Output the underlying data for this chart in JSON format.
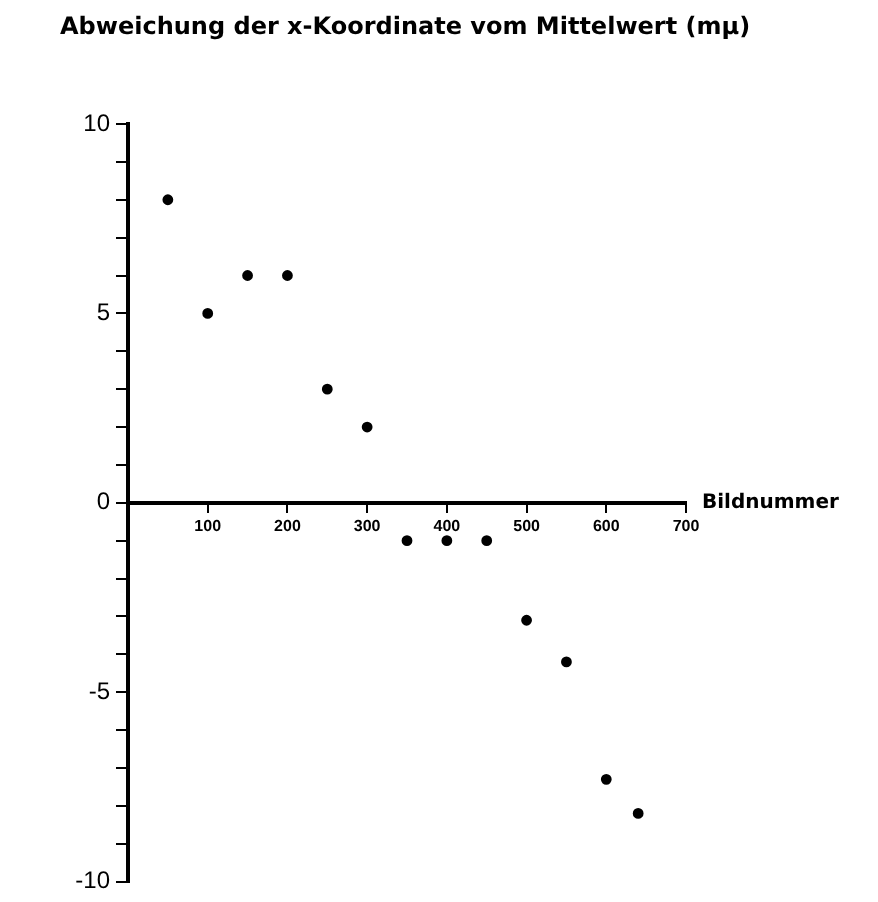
{
  "chart_data": {
    "type": "scatter",
    "title": "Abweichung der x-Koordinate vom Mittelwert (mμ)",
    "xlabel": "Bildnummer",
    "x": [
      50,
      100,
      150,
      200,
      250,
      300,
      350,
      400,
      450,
      500,
      550,
      600,
      640
    ],
    "values": [
      8,
      5,
      6,
      6,
      3,
      2,
      -1,
      -1,
      -1,
      -3.1,
      -4.2,
      -7.3,
      -8.2
    ],
    "color": "#000000",
    "marker": "circle",
    "grid": false,
    "xlim": [
      0,
      700
    ],
    "xticks": [
      100,
      200,
      300,
      400,
      500,
      600,
      700
    ],
    "ylim": [
      -10,
      10
    ],
    "yticks": [
      -10,
      {
        "value": -9,
        "label": null
      },
      {
        "value": -8,
        "label": null
      },
      {
        "value": -7,
        "label": null
      },
      {
        "value": -6,
        "label": null
      },
      -5,
      {
        "value": -4,
        "label": null
      },
      {
        "value": -3,
        "label": null
      },
      {
        "value": -2,
        "label": null
      },
      {
        "value": -1,
        "label": null
      },
      0,
      {
        "value": 1,
        "label": null
      },
      {
        "value": 2,
        "label": null
      },
      {
        "value": 3,
        "label": null
      },
      {
        "value": 4,
        "label": null
      },
      5,
      {
        "value": 6,
        "label": null
      },
      {
        "value": 7,
        "label": null
      },
      {
        "value": 8,
        "label": null
      },
      {
        "value": 9,
        "label": null
      },
      10
    ]
  }
}
